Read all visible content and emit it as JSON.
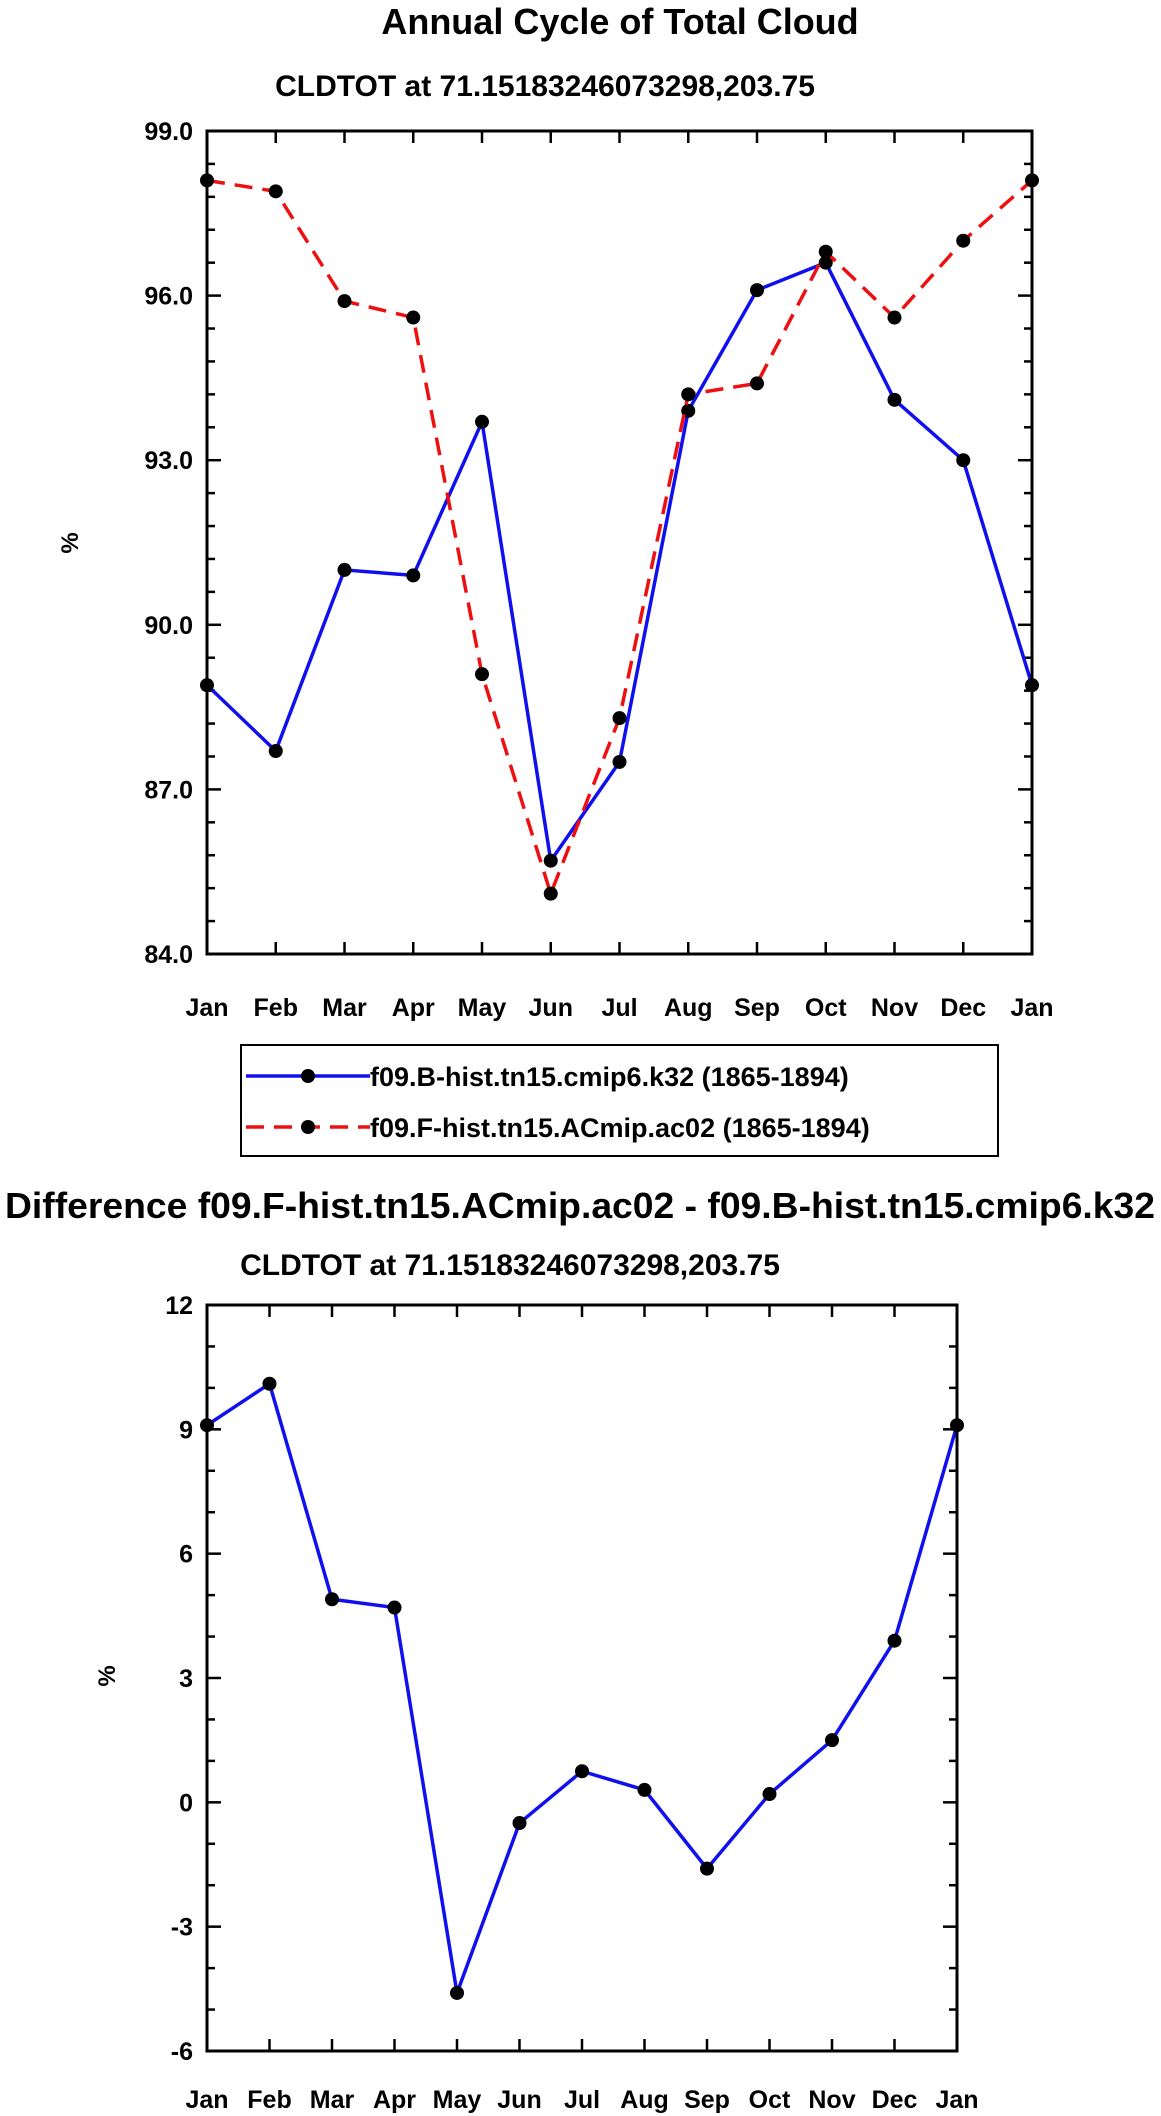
{
  "chart_data": [
    {
      "type": "line",
      "title": "Annual Cycle of Total Cloud",
      "subtitle": "CLDTOT at 71.15183246073298,203.75",
      "xlabel": "",
      "ylabel": "%",
      "categories": [
        "Jan",
        "Feb",
        "Mar",
        "Apr",
        "May",
        "Jun",
        "Jul",
        "Aug",
        "Sep",
        "Oct",
        "Nov",
        "Dec",
        "Jan"
      ],
      "ylim": [
        84.0,
        99.0
      ],
      "yticks": [
        84.0,
        87.0,
        90.0,
        93.0,
        96.0,
        99.0
      ],
      "ytick_labels": [
        "84.0",
        "87.0",
        "90.0",
        "93.0",
        "96.0",
        "99.0"
      ],
      "grid": false,
      "legend_position": "below",
      "series": [
        {
          "name": "f09.B-hist.tn15.cmip6.k32 (1865-1894)",
          "color": "#1010ee",
          "dash": "solid",
          "values": [
            88.9,
            87.7,
            91.0,
            90.9,
            93.7,
            85.7,
            87.5,
            93.9,
            96.1,
            96.6,
            94.1,
            93.0,
            88.9
          ]
        },
        {
          "name": "f09.F-hist.tn15.ACmip.ac02 (1865-1894)",
          "color": "#ee1010",
          "dash": "dashed",
          "values": [
            98.1,
            97.9,
            95.9,
            95.6,
            89.1,
            85.1,
            88.3,
            94.2,
            94.4,
            96.8,
            95.6,
            97.0,
            98.1
          ]
        }
      ]
    },
    {
      "type": "line",
      "title": "Difference f09.F-hist.tn15.ACmip.ac02 - f09.B-hist.tn15.cmip6.k32",
      "subtitle": "CLDTOT at 71.15183246073298,203.75",
      "xlabel": "",
      "ylabel": "%",
      "categories": [
        "Jan",
        "Feb",
        "Mar",
        "Apr",
        "May",
        "Jun",
        "Jul",
        "Aug",
        "Sep",
        "Oct",
        "Nov",
        "Dec",
        "Jan"
      ],
      "ylim": [
        -6,
        12
      ],
      "yticks": [
        -6,
        -3,
        0,
        3,
        6,
        9,
        12
      ],
      "ytick_labels": [
        "-6",
        "-3",
        "0",
        "3",
        "6",
        "9",
        "12"
      ],
      "grid": false,
      "series": [
        {
          "name": "Difference",
          "color": "#1010ee",
          "dash": "solid",
          "values": [
            9.1,
            10.1,
            4.9,
            4.7,
            -4.6,
            -0.5,
            0.75,
            0.3,
            -1.6,
            0.2,
            1.5,
            3.9,
            9.1
          ]
        }
      ]
    }
  ]
}
